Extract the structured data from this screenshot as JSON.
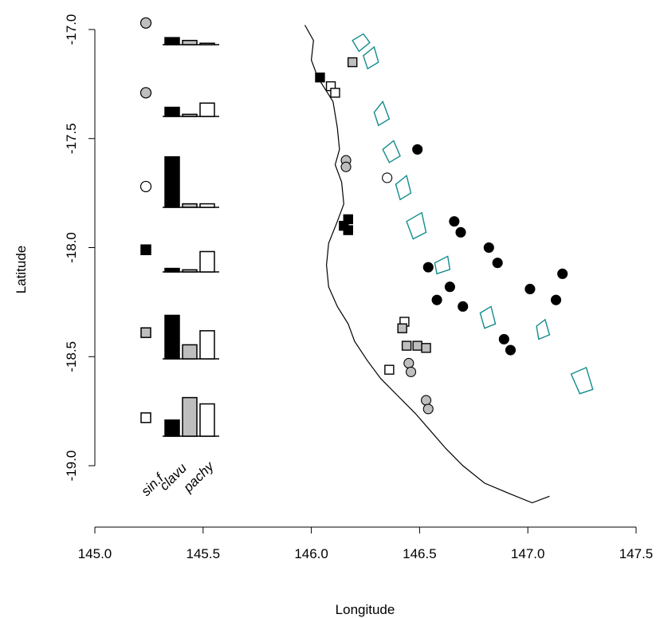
{
  "chart_data": {
    "type": "map",
    "xlabel": "Longitude",
    "ylabel": "Latitude",
    "xlim": [
      145.0,
      147.5
    ],
    "ylim": [
      -19.0,
      -17.0
    ],
    "x_ticks": [
      {
        "v": 145.0,
        "label": "145.0"
      },
      {
        "v": 145.5,
        "label": "145.5"
      },
      {
        "v": 146.0,
        "label": "146.0"
      },
      {
        "v": 146.5,
        "label": "146.5"
      },
      {
        "v": 147.0,
        "label": "147.0"
      },
      {
        "v": 147.5,
        "label": "147.5"
      }
    ],
    "y_ticks": [
      {
        "v": -17.0,
        "label": "-17.0"
      },
      {
        "v": -17.5,
        "label": "-17.5"
      },
      {
        "v": -18.0,
        "label": "-18.0"
      },
      {
        "v": -18.5,
        "label": "-18.5"
      },
      {
        "v": -19.0,
        "label": "-19.0"
      }
    ],
    "colors": {
      "black": "#000000",
      "grey": "#bebebe",
      "white": "#ffffff",
      "coast": "#000000",
      "reef": "#138c8c"
    },
    "bar_categories": [
      "sin.f",
      "clavu",
      "pachy"
    ],
    "bar_groups": [
      {
        "symbol": "circle",
        "fill": "grey",
        "key_lat": -16.97,
        "values": [
          0.1,
          0.06,
          0.02
        ]
      },
      {
        "symbol": "circle",
        "fill": "grey",
        "key_lat": -17.29,
        "values": [
          0.13,
          0.03,
          0.19
        ]
      },
      {
        "symbol": "circle",
        "fill": "white",
        "key_lat": -17.72,
        "values": [
          0.72,
          0.05,
          0.05
        ]
      },
      {
        "symbol": "square",
        "fill": "black",
        "key_lat": -18.01,
        "values": [
          0.05,
          0.03,
          0.29
        ]
      },
      {
        "symbol": "square",
        "fill": "grey",
        "key_lat": -18.39,
        "values": [
          0.62,
          0.2,
          0.4
        ]
      },
      {
        "symbol": "square",
        "fill": "white",
        "key_lat": -18.78,
        "values": [
          0.23,
          0.55,
          0.46
        ]
      }
    ],
    "points": [
      {
        "lon": 146.19,
        "lat": -17.15,
        "symbol": "square",
        "fill": "grey"
      },
      {
        "lon": 146.04,
        "lat": -17.22,
        "symbol": "square",
        "fill": "black"
      },
      {
        "lon": 146.09,
        "lat": -17.26,
        "symbol": "square",
        "fill": "white"
      },
      {
        "lon": 146.11,
        "lat": -17.29,
        "symbol": "square",
        "fill": "white"
      },
      {
        "lon": 146.16,
        "lat": -17.6,
        "symbol": "circle",
        "fill": "grey"
      },
      {
        "lon": 146.16,
        "lat": -17.63,
        "symbol": "circle",
        "fill": "grey"
      },
      {
        "lon": 146.35,
        "lat": -17.68,
        "symbol": "circle",
        "fill": "white"
      },
      {
        "lon": 146.49,
        "lat": -17.55,
        "symbol": "circle",
        "fill": "black"
      },
      {
        "lon": 146.17,
        "lat": -17.87,
        "symbol": "square",
        "fill": "black"
      },
      {
        "lon": 146.15,
        "lat": -17.9,
        "symbol": "square",
        "fill": "black"
      },
      {
        "lon": 146.17,
        "lat": -17.92,
        "symbol": "square",
        "fill": "black"
      },
      {
        "lon": 146.66,
        "lat": -17.88,
        "symbol": "circle",
        "fill": "black"
      },
      {
        "lon": 146.69,
        "lat": -17.93,
        "symbol": "circle",
        "fill": "black"
      },
      {
        "lon": 146.82,
        "lat": -18.0,
        "symbol": "circle",
        "fill": "black"
      },
      {
        "lon": 146.86,
        "lat": -18.07,
        "symbol": "circle",
        "fill": "black"
      },
      {
        "lon": 146.54,
        "lat": -18.09,
        "symbol": "circle",
        "fill": "black"
      },
      {
        "lon": 146.64,
        "lat": -18.18,
        "symbol": "circle",
        "fill": "black"
      },
      {
        "lon": 147.01,
        "lat": -18.19,
        "symbol": "circle",
        "fill": "black"
      },
      {
        "lon": 147.16,
        "lat": -18.12,
        "symbol": "circle",
        "fill": "black"
      },
      {
        "lon": 146.58,
        "lat": -18.24,
        "symbol": "circle",
        "fill": "black"
      },
      {
        "lon": 146.7,
        "lat": -18.27,
        "symbol": "circle",
        "fill": "black"
      },
      {
        "lon": 147.13,
        "lat": -18.24,
        "symbol": "circle",
        "fill": "black"
      },
      {
        "lon": 146.89,
        "lat": -18.42,
        "symbol": "circle",
        "fill": "black"
      },
      {
        "lon": 146.92,
        "lat": -18.47,
        "symbol": "circle",
        "fill": "black"
      },
      {
        "lon": 146.43,
        "lat": -18.34,
        "symbol": "square",
        "fill": "white"
      },
      {
        "lon": 146.42,
        "lat": -18.37,
        "symbol": "square",
        "fill": "grey"
      },
      {
        "lon": 146.44,
        "lat": -18.45,
        "symbol": "square",
        "fill": "grey"
      },
      {
        "lon": 146.49,
        "lat": -18.45,
        "symbol": "square",
        "fill": "grey"
      },
      {
        "lon": 146.53,
        "lat": -18.46,
        "symbol": "square",
        "fill": "grey"
      },
      {
        "lon": 146.45,
        "lat": -18.53,
        "symbol": "circle",
        "fill": "grey"
      },
      {
        "lon": 146.46,
        "lat": -18.57,
        "symbol": "circle",
        "fill": "grey"
      },
      {
        "lon": 146.36,
        "lat": -18.56,
        "symbol": "square",
        "fill": "white"
      },
      {
        "lon": 146.53,
        "lat": -18.7,
        "symbol": "circle",
        "fill": "grey"
      },
      {
        "lon": 146.54,
        "lat": -18.74,
        "symbol": "circle",
        "fill": "grey"
      }
    ],
    "coastline": [
      [
        145.97,
        -16.98
      ],
      [
        146.01,
        -17.05
      ],
      [
        146.0,
        -17.14
      ],
      [
        146.03,
        -17.22
      ],
      [
        146.1,
        -17.33
      ],
      [
        146.12,
        -17.45
      ],
      [
        146.13,
        -17.55
      ],
      [
        146.11,
        -17.62
      ],
      [
        146.14,
        -17.7
      ],
      [
        146.15,
        -17.8
      ],
      [
        146.12,
        -17.88
      ],
      [
        146.08,
        -17.98
      ],
      [
        146.07,
        -18.08
      ],
      [
        146.08,
        -18.18
      ],
      [
        146.12,
        -18.27
      ],
      [
        146.17,
        -18.35
      ],
      [
        146.2,
        -18.43
      ],
      [
        146.26,
        -18.52
      ],
      [
        146.32,
        -18.6
      ],
      [
        146.4,
        -18.68
      ],
      [
        146.48,
        -18.76
      ],
      [
        146.55,
        -18.84
      ],
      [
        146.62,
        -18.92
      ],
      [
        146.7,
        -19.0
      ],
      [
        146.8,
        -19.08
      ],
      [
        146.92,
        -19.13
      ],
      [
        147.02,
        -19.17
      ],
      [
        147.1,
        -19.14
      ]
    ],
    "reefs": [
      [
        [
          146.19,
          -17.05
        ],
        [
          146.24,
          -17.02
        ],
        [
          146.27,
          -17.06
        ],
        [
          146.22,
          -17.1
        ]
      ],
      [
        [
          146.24,
          -17.12
        ],
        [
          146.29,
          -17.08
        ],
        [
          146.31,
          -17.15
        ],
        [
          146.26,
          -17.18
        ]
      ],
      [
        [
          146.29,
          -17.38
        ],
        [
          146.33,
          -17.33
        ],
        [
          146.36,
          -17.41
        ],
        [
          146.31,
          -17.44
        ]
      ],
      [
        [
          146.33,
          -17.55
        ],
        [
          146.38,
          -17.51
        ],
        [
          146.41,
          -17.58
        ],
        [
          146.36,
          -17.61
        ]
      ],
      [
        [
          146.39,
          -17.71
        ],
        [
          146.44,
          -17.67
        ],
        [
          146.46,
          -17.75
        ],
        [
          146.41,
          -17.78
        ]
      ],
      [
        [
          146.44,
          -17.88
        ],
        [
          146.51,
          -17.84
        ],
        [
          146.53,
          -17.93
        ],
        [
          146.47,
          -17.96
        ]
      ],
      [
        [
          146.57,
          -18.07
        ],
        [
          146.63,
          -18.04
        ],
        [
          146.64,
          -18.1
        ],
        [
          146.58,
          -18.12
        ]
      ],
      [
        [
          146.78,
          -18.3
        ],
        [
          146.83,
          -18.27
        ],
        [
          146.85,
          -18.35
        ],
        [
          146.8,
          -18.37
        ]
      ],
      [
        [
          147.04,
          -18.36
        ],
        [
          147.08,
          -18.33
        ],
        [
          147.1,
          -18.4
        ],
        [
          147.05,
          -18.42
        ]
      ],
      [
        [
          147.2,
          -18.58
        ],
        [
          147.27,
          -18.55
        ],
        [
          147.3,
          -18.65
        ],
        [
          147.24,
          -18.67
        ]
      ]
    ]
  }
}
